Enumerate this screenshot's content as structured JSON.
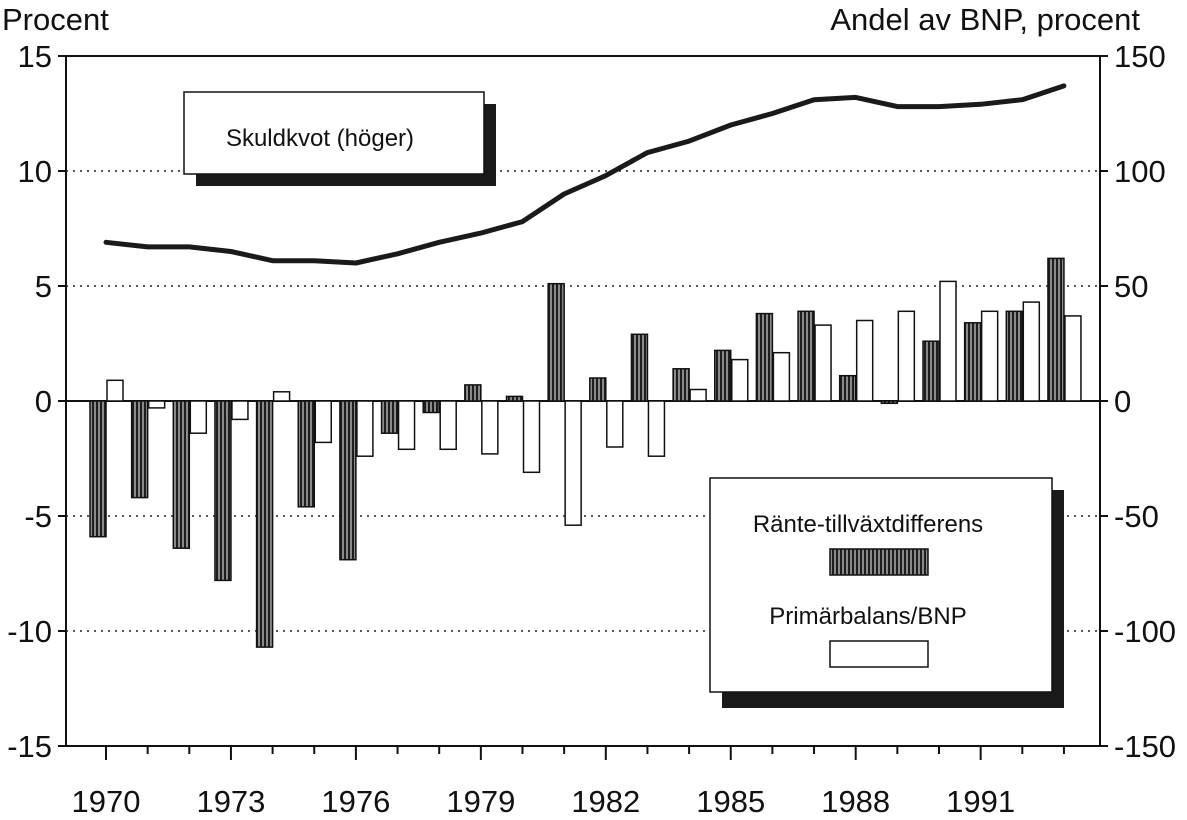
{
  "chart_data": {
    "type": "bar",
    "title": "",
    "ylabel_left": "Procent",
    "ylabel_right": "Andel av BNP, procent",
    "ylim_left": [
      -15,
      15
    ],
    "ylim_right": [
      -150,
      150
    ],
    "yticks_left": [
      "15",
      "10",
      "5",
      "0",
      "-5",
      "-10",
      "-15"
    ],
    "yticks_right": [
      "150",
      "100",
      "50",
      "0",
      "-50",
      "-100",
      "-150"
    ],
    "xtick_labels": [
      "1970",
      "1973",
      "1976",
      "1979",
      "1982",
      "1985",
      "1988",
      "1991"
    ],
    "grid": "dotted horizontal at ±5, ±10",
    "categories": [
      1970,
      1971,
      1972,
      1973,
      1974,
      1975,
      1976,
      1977,
      1978,
      1979,
      1980,
      1981,
      1982,
      1983,
      1984,
      1985,
      1986,
      1987,
      1988,
      1989,
      1990,
      1991,
      1992,
      1993
    ],
    "series": [
      {
        "name": "Ränte-tillväxtdifferens",
        "type": "bar",
        "axis": "left",
        "pattern": "hatched",
        "values": [
          -5.9,
          -4.2,
          -6.4,
          -7.8,
          -10.7,
          -4.6,
          -6.9,
          -1.4,
          -0.5,
          0.7,
          0.2,
          5.1,
          1.0,
          2.9,
          1.4,
          2.2,
          3.8,
          3.9,
          1.1,
          -0.1,
          2.6,
          3.4,
          3.9,
          6.2
        ]
      },
      {
        "name": "Primärbalans/BNP",
        "type": "bar",
        "axis": "left",
        "pattern": "open",
        "values": [
          0.9,
          -0.3,
          -1.4,
          -0.8,
          0.4,
          -1.8,
          -2.4,
          -2.1,
          -2.1,
          -2.3,
          -3.1,
          -5.4,
          -2.0,
          -2.4,
          0.5,
          1.8,
          2.1,
          3.3,
          3.5,
          3.9,
          5.2,
          3.9,
          4.3,
          3.7
        ]
      },
      {
        "name": "Skuldkvot (höger)",
        "type": "line",
        "axis": "right",
        "x": [
          1970,
          1971,
          1972,
          1973,
          1974,
          1975,
          1976,
          1977,
          1978,
          1979,
          1980,
          1981,
          1982,
          1983,
          1984,
          1985,
          1986,
          1987,
          1988,
          1989,
          1990,
          1991,
          1992,
          1993
        ],
        "values": [
          69,
          67,
          67,
          65,
          61,
          61,
          60,
          64,
          69,
          73,
          78,
          90,
          98,
          108,
          113,
          120,
          125,
          131,
          132,
          128,
          128,
          129,
          131,
          137
        ]
      }
    ],
    "legend": [
      {
        "label": "Skuldkvot (höger)",
        "placement": "top-left"
      },
      {
        "label": "Ränte-tillväxtdifferens",
        "placement": "bottom-right"
      },
      {
        "label": "Primärbalans/BNP",
        "placement": "bottom-right"
      }
    ]
  },
  "colors": {
    "ink": "#111111",
    "bar_hatched": "#4a4a4a",
    "bar_open": "#ffffff",
    "shadow": "#1a1a1a",
    "grid": "#222222"
  }
}
